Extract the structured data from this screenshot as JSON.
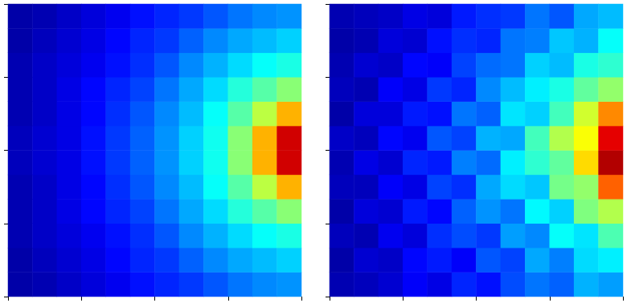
{
  "chart_data": [
    {
      "type": "heatmap",
      "xlim": [
        0,
        1
      ],
      "ylim": [
        0,
        1
      ],
      "xticks": [
        0,
        0.25,
        0.5,
        0.75,
        1
      ],
      "yticks": [
        0,
        0.25,
        0.5,
        0.75,
        1
      ],
      "tick_labels": false,
      "grid": false,
      "zlim": [
        0,
        1
      ],
      "cells": [
        [
          0.04,
          0.05,
          0.07,
          0.09,
          0.11,
          0.14,
          0.16,
          0.18,
          0.21,
          0.24,
          0.26,
          0.27
        ],
        [
          0.04,
          0.06,
          0.08,
          0.1,
          0.13,
          0.16,
          0.18,
          0.22,
          0.26,
          0.29,
          0.31,
          0.33
        ],
        [
          0.05,
          0.07,
          0.09,
          0.11,
          0.14,
          0.17,
          0.21,
          0.26,
          0.3,
          0.34,
          0.38,
          0.4
        ],
        [
          0.05,
          0.07,
          0.1,
          0.13,
          0.16,
          0.19,
          0.24,
          0.29,
          0.34,
          0.41,
          0.46,
          0.51
        ],
        [
          0.05,
          0.07,
          0.1,
          0.13,
          0.17,
          0.21,
          0.26,
          0.31,
          0.38,
          0.46,
          0.56,
          0.7
        ],
        [
          0.06,
          0.08,
          0.1,
          0.14,
          0.18,
          0.22,
          0.27,
          0.33,
          0.39,
          0.51,
          0.7,
          0.92
        ],
        [
          0.06,
          0.08,
          0.1,
          0.14,
          0.18,
          0.22,
          0.27,
          0.33,
          0.39,
          0.51,
          0.7,
          0.92
        ],
        [
          0.05,
          0.07,
          0.1,
          0.13,
          0.17,
          0.21,
          0.26,
          0.31,
          0.38,
          0.46,
          0.56,
          0.7
        ],
        [
          0.05,
          0.07,
          0.1,
          0.13,
          0.16,
          0.19,
          0.24,
          0.29,
          0.34,
          0.41,
          0.46,
          0.51
        ],
        [
          0.05,
          0.07,
          0.09,
          0.11,
          0.14,
          0.17,
          0.21,
          0.26,
          0.3,
          0.34,
          0.38,
          0.4
        ],
        [
          0.04,
          0.06,
          0.08,
          0.1,
          0.13,
          0.16,
          0.18,
          0.22,
          0.26,
          0.29,
          0.31,
          0.33
        ],
        [
          0.04,
          0.05,
          0.07,
          0.09,
          0.11,
          0.14,
          0.16,
          0.18,
          0.21,
          0.24,
          0.26,
          0.27
        ]
      ]
    },
    {
      "type": "heatmap",
      "xlim": [
        0,
        1
      ],
      "ylim": [
        0,
        1
      ],
      "xticks": [
        0,
        0.25,
        0.5,
        0.75,
        1
      ],
      "yticks": [
        0,
        0.25,
        0.5,
        0.75,
        1
      ],
      "tick_labels": false,
      "grid": false,
      "zlim": [
        0,
        1
      ],
      "cells": [
        [
          0.05,
          0.06,
          0.08,
          0.12,
          0.1,
          0.16,
          0.14,
          0.2,
          0.24,
          0.22,
          0.3,
          0.28
        ],
        [
          0.04,
          0.08,
          0.07,
          0.13,
          0.15,
          0.12,
          0.21,
          0.19,
          0.29,
          0.25,
          0.34,
          0.36
        ],
        [
          0.06,
          0.05,
          0.11,
          0.09,
          0.17,
          0.2,
          0.18,
          0.28,
          0.26,
          0.38,
          0.35,
          0.45
        ],
        [
          0.04,
          0.09,
          0.08,
          0.15,
          0.13,
          0.22,
          0.27,
          0.24,
          0.37,
          0.33,
          0.5,
          0.55
        ],
        [
          0.06,
          0.06,
          0.12,
          0.1,
          0.19,
          0.17,
          0.29,
          0.34,
          0.32,
          0.49,
          0.52,
          0.78
        ],
        [
          0.05,
          0.1,
          0.08,
          0.16,
          0.15,
          0.25,
          0.23,
          0.36,
          0.42,
          0.47,
          0.66,
          0.95
        ],
        [
          0.07,
          0.06,
          0.13,
          0.11,
          0.21,
          0.19,
          0.3,
          0.29,
          0.44,
          0.55,
          0.62,
          0.9
        ],
        [
          0.04,
          0.09,
          0.09,
          0.15,
          0.14,
          0.24,
          0.22,
          0.35,
          0.33,
          0.44,
          0.58,
          0.74
        ],
        [
          0.06,
          0.05,
          0.12,
          0.1,
          0.18,
          0.16,
          0.26,
          0.31,
          0.36,
          0.4,
          0.47,
          0.52
        ],
        [
          0.05,
          0.08,
          0.07,
          0.13,
          0.12,
          0.19,
          0.23,
          0.24,
          0.33,
          0.31,
          0.4,
          0.42
        ],
        [
          0.04,
          0.05,
          0.09,
          0.08,
          0.14,
          0.17,
          0.16,
          0.24,
          0.25,
          0.32,
          0.3,
          0.38
        ],
        [
          0.05,
          0.06,
          0.07,
          0.1,
          0.09,
          0.15,
          0.17,
          0.18,
          0.24,
          0.21,
          0.29,
          0.31
        ]
      ]
    }
  ]
}
